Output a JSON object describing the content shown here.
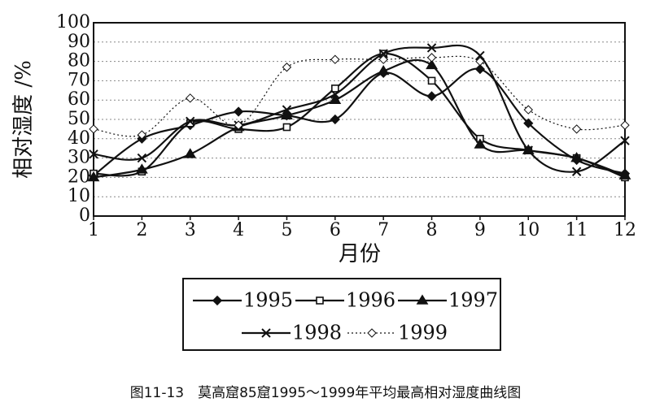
{
  "chart_data": {
    "type": "line",
    "y_label": "相对湿度 /%",
    "x_label": "月份",
    "caption": "图11-13　莫高窟85窟1995～1999年平均最高相对湿度曲线图",
    "x": [
      1,
      2,
      3,
      4,
      5,
      6,
      7,
      8,
      9,
      10,
      11,
      12
    ],
    "xlim": [
      1,
      12
    ],
    "xticks": [
      1,
      2,
      3,
      4,
      5,
      6,
      7,
      8,
      9,
      10,
      11,
      12
    ],
    "ylim": [
      0,
      100
    ],
    "yticks": [
      0,
      10,
      20,
      30,
      40,
      50,
      60,
      70,
      80,
      90,
      100
    ],
    "grid": true,
    "series": [
      {
        "name": "1995",
        "color": "#111111",
        "marker": "diamond",
        "line": "solid",
        "values": [
          21,
          40,
          47,
          54,
          52,
          50,
          74,
          62,
          76,
          48,
          29,
          22
        ]
      },
      {
        "name": "1996",
        "color": "#111111",
        "marker": "square",
        "line": "solid",
        "values": [
          22,
          23,
          48,
          45,
          46,
          66,
          84,
          70,
          40,
          34,
          30,
          20
        ]
      },
      {
        "name": "1997",
        "color": "#111111",
        "marker": "triangle",
        "line": "solid",
        "values": [
          20,
          24,
          32,
          46,
          52,
          60,
          75,
          78,
          37,
          34,
          30,
          21
        ]
      },
      {
        "name": "1998",
        "color": "#111111",
        "marker": "cross",
        "line": "solid",
        "values": [
          32,
          30,
          49,
          47,
          55,
          63,
          84,
          87,
          83,
          34,
          23,
          39
        ]
      },
      {
        "name": "1999",
        "color": "#111111",
        "marker": "open-diamond",
        "line": "dotted",
        "values": [
          45,
          42,
          61,
          47,
          77,
          81,
          81,
          82,
          80,
          55,
          45,
          47
        ]
      }
    ]
  }
}
